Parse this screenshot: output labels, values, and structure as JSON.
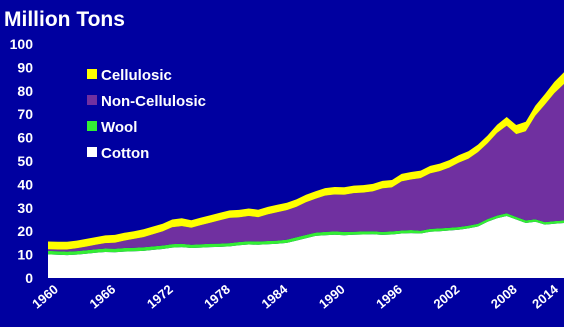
{
  "chart_data": {
    "type": "area",
    "stacked": true,
    "title": "Million Tons",
    "xlabel": "",
    "ylabel": "",
    "xlim": [
      1960,
      2014
    ],
    "ylim": [
      0,
      100
    ],
    "y_ticks": [
      0,
      10,
      20,
      30,
      40,
      50,
      60,
      70,
      80,
      90,
      100
    ],
    "x_ticks": [
      1960,
      1966,
      1972,
      1978,
      1984,
      1990,
      1996,
      2002,
      2008,
      2014
    ],
    "grid": false,
    "legend_position": "upper-left",
    "x": [
      1960,
      1961,
      1962,
      1963,
      1964,
      1965,
      1966,
      1967,
      1968,
      1969,
      1970,
      1971,
      1972,
      1973,
      1974,
      1975,
      1976,
      1977,
      1978,
      1979,
      1980,
      1981,
      1982,
      1983,
      1984,
      1985,
      1986,
      1987,
      1988,
      1989,
      1990,
      1991,
      1992,
      1993,
      1994,
      1995,
      1996,
      1997,
      1998,
      1999,
      2000,
      2001,
      2002,
      2003,
      2004,
      2005,
      2006,
      2007,
      2008,
      2009,
      2010,
      2011,
      2012,
      2013,
      2014
    ],
    "series": [
      {
        "name": "Cotton",
        "color": "#ffffff",
        "values": [
          10.1,
          9.9,
          9.8,
          10.0,
          10.4,
          10.8,
          11.1,
          11.0,
          11.3,
          11.4,
          11.6,
          12.0,
          12.4,
          13.0,
          13.2,
          12.8,
          13.0,
          13.2,
          13.3,
          13.5,
          14.0,
          14.3,
          14.2,
          14.4,
          14.6,
          15.0,
          16.0,
          17.0,
          18.0,
          18.3,
          18.5,
          18.3,
          18.5,
          18.6,
          18.7,
          18.4,
          18.6,
          19.0,
          19.2,
          19.0,
          19.8,
          20.0,
          20.3,
          20.6,
          21.2,
          22.0,
          24.0,
          25.5,
          26.5,
          25.0,
          23.5,
          24.0,
          22.8,
          23.2,
          23.5
        ]
      },
      {
        "name": "Wool",
        "color": "#33ee33",
        "values": [
          1.5,
          1.5,
          1.5,
          1.5,
          1.5,
          1.5,
          1.5,
          1.5,
          1.5,
          1.5,
          1.5,
          1.5,
          1.5,
          1.5,
          1.4,
          1.4,
          1.4,
          1.4,
          1.4,
          1.4,
          1.4,
          1.4,
          1.4,
          1.4,
          1.4,
          1.4,
          1.4,
          1.4,
          1.4,
          1.4,
          1.4,
          1.4,
          1.3,
          1.3,
          1.3,
          1.3,
          1.3,
          1.3,
          1.3,
          1.2,
          1.2,
          1.2,
          1.2,
          1.2,
          1.2,
          1.2,
          1.2,
          1.2,
          1.2,
          1.1,
          1.1,
          1.1,
          1.1,
          1.1,
          1.1
        ]
      },
      {
        "name": "Non-Cellulosic",
        "color": "#7030a0",
        "values": [
          0.7,
          0.8,
          0.9,
          1.2,
          1.5,
          1.9,
          2.3,
          2.6,
          3.2,
          3.8,
          4.4,
          5.2,
          6.0,
          7.2,
          7.6,
          7.3,
          8.2,
          9.0,
          10.0,
          10.8,
          10.5,
          10.8,
          10.4,
          11.4,
          12.1,
          12.6,
          13.0,
          14.0,
          14.5,
          15.5,
          15.8,
          15.9,
          16.5,
          16.6,
          17.0,
          18.6,
          18.8,
          21.0,
          21.6,
          22.5,
          23.7,
          24.5,
          25.7,
          27.5,
          28.6,
          30.6,
          32.4,
          35.3,
          37.4,
          35.4,
          38.1,
          44.2,
          50.2,
          54.7,
          58.3
        ]
      },
      {
        "name": "Cellulosic",
        "color": "#ffff00",
        "values": [
          3.3,
          3.3,
          3.3,
          3.3,
          3.3,
          3.3,
          3.3,
          3.3,
          3.3,
          3.3,
          3.3,
          3.3,
          3.3,
          3.3,
          3.3,
          3.2,
          3.2,
          3.2,
          3.2,
          3.2,
          3.2,
          3.2,
          3.2,
          3.2,
          3.2,
          3.2,
          3.2,
          3.2,
          3.2,
          3.2,
          3.2,
          3.2,
          3.2,
          3.2,
          3.2,
          3.2,
          3.2,
          3.2,
          3.2,
          3.2,
          3.2,
          3.2,
          3.2,
          3.2,
          3.2,
          3.2,
          3.3,
          3.5,
          3.7,
          3.9,
          4.1,
          4.3,
          4.5,
          4.8,
          5.0
        ]
      }
    ],
    "legend": [
      "Cellulosic",
      "Non-Cellulosic",
      "Wool",
      "Cotton"
    ]
  }
}
